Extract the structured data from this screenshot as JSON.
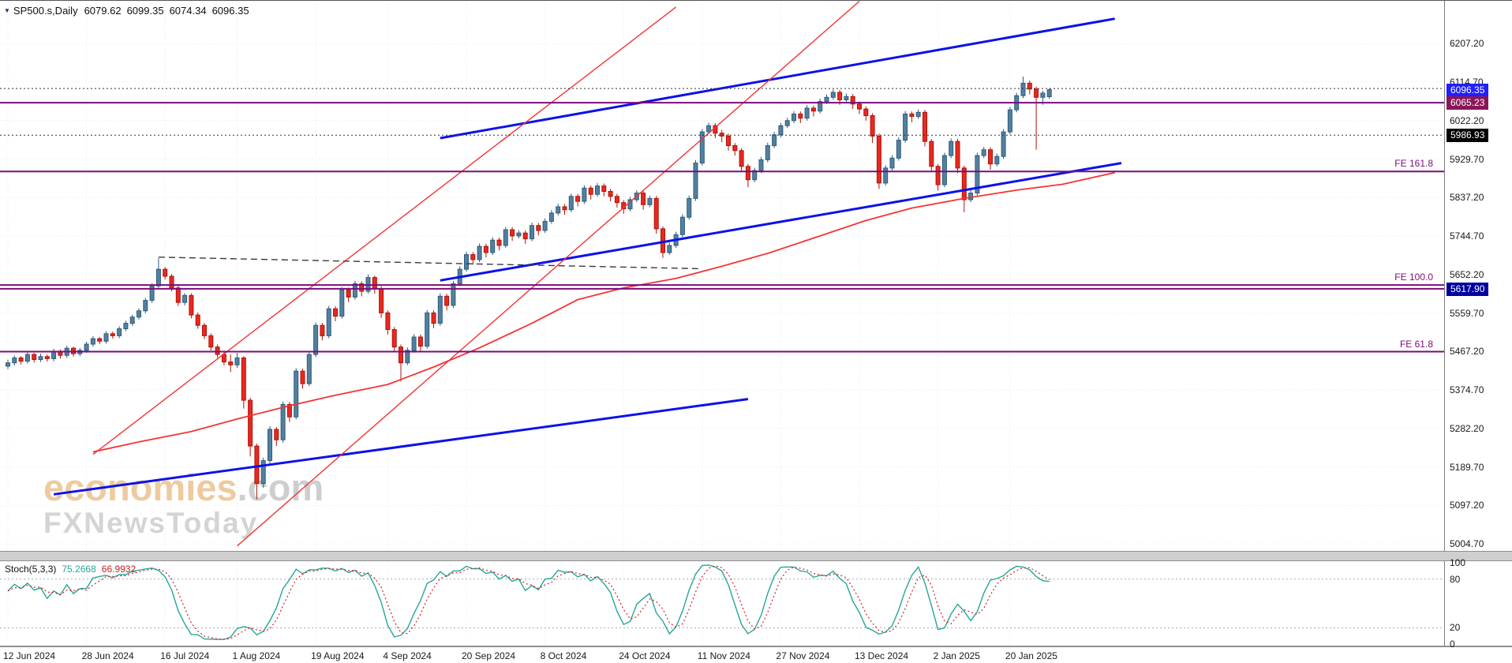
{
  "window": {
    "dropdown_icon": "▼",
    "symbol_timeframe": "SP500.s,Daily",
    "open": "6079.62",
    "high": "6099.35",
    "low": "6074.34",
    "close": "6096.35"
  },
  "watermark": {
    "brand": "economies",
    "domain": ".com",
    "tagline": "FXNewsToday"
  },
  "indicator": {
    "name": "Stoch(5,3,3)",
    "k": "75.2668",
    "d": "66.9932",
    "scale": [
      {
        "text": "100",
        "value": 100
      },
      {
        "text": "80",
        "value": 80
      },
      {
        "text": "20",
        "value": 20
      },
      {
        "text": "0",
        "value": 0
      }
    ]
  },
  "colors": {
    "candle_up": "#53809f",
    "candle_up_border": "#2e5c7c",
    "candle_down": "#e8291f",
    "candle_down_border": "#b01208",
    "grid": "#dcebf2",
    "trend_blue": "#0d12e8",
    "trend_red": "#f53333",
    "fib_purple": "#7a0d7a",
    "stoch_k": "#26a69a",
    "stoch_d": "#d42222",
    "badge_current": "#1f1fff",
    "badge_level": "#8a1657",
    "badge_black": "#000000",
    "badge_navy": "#0000a0"
  },
  "chart_data": {
    "type": "candlestick",
    "symbol": "SP500.s",
    "timeframe": "Daily",
    "title": "SP500.s,Daily 6079.62 6099.35 6074.34 6096.35",
    "legend_position": "top-left",
    "grid": true,
    "y_axis": {
      "side": "right",
      "range": [
        4990,
        6310
      ],
      "ticks": [
        "6207.20",
        "6114.70",
        "6022.20",
        "5929.70",
        "5837.20",
        "5744.70",
        "5652.20",
        "5559.70",
        "5467.20",
        "5374.70",
        "5282.20",
        "5189.70",
        "5097.20",
        "5004.70"
      ]
    },
    "x_axis": [
      {
        "label": "12 Jun 2024",
        "index": 0
      },
      {
        "label": "28 Jun 2024",
        "index": 12
      },
      {
        "label": "16 Jul 2024",
        "index": 24
      },
      {
        "label": "1 Aug 2024",
        "index": 35
      },
      {
        "label": "19 Aug 2024",
        "index": 47
      },
      {
        "label": "4 Sep 2024",
        "index": 58
      },
      {
        "label": "20 Sep 2024",
        "index": 70
      },
      {
        "label": "8 Oct 2024",
        "index": 82
      },
      {
        "label": "24 Oct 2024",
        "index": 94
      },
      {
        "label": "11 Nov 2024",
        "index": 106
      },
      {
        "label": "27 Nov 2024",
        "index": 118
      },
      {
        "label": "13 Dec 2024",
        "index": 130
      },
      {
        "label": "2 Jan 2025",
        "index": 142
      },
      {
        "label": "20 Jan 2025",
        "index": 153
      }
    ],
    "candles": [
      [
        5432,
        5448,
        5425,
        5440
      ],
      [
        5440,
        5458,
        5434,
        5452
      ],
      [
        5452,
        5456,
        5436,
        5444
      ],
      [
        5444,
        5466,
        5438,
        5460
      ],
      [
        5460,
        5464,
        5441,
        5448
      ],
      [
        5448,
        5462,
        5442,
        5455
      ],
      [
        5455,
        5460,
        5443,
        5450
      ],
      [
        5450,
        5474,
        5444,
        5468
      ],
      [
        5468,
        5472,
        5450,
        5458
      ],
      [
        5458,
        5481,
        5452,
        5475
      ],
      [
        5475,
        5479,
        5455,
        5462
      ],
      [
        5462,
        5476,
        5456,
        5470
      ],
      [
        5470,
        5491,
        5464,
        5485
      ],
      [
        5485,
        5504,
        5479,
        5498
      ],
      [
        5498,
        5502,
        5485,
        5492
      ],
      [
        5492,
        5516,
        5486,
        5510
      ],
      [
        5510,
        5515,
        5498,
        5505
      ],
      [
        5505,
        5528,
        5499,
        5522
      ],
      [
        5522,
        5541,
        5516,
        5535
      ],
      [
        5535,
        5556,
        5529,
        5550
      ],
      [
        5550,
        5571,
        5544,
        5565
      ],
      [
        5565,
        5596,
        5559,
        5590
      ],
      [
        5590,
        5631,
        5584,
        5625
      ],
      [
        5625,
        5692,
        5619,
        5665
      ],
      [
        5665,
        5670,
        5640,
        5648
      ],
      [
        5648,
        5653,
        5612,
        5620
      ],
      [
        5620,
        5626,
        5577,
        5585
      ],
      [
        5585,
        5608,
        5578,
        5602
      ],
      [
        5602,
        5607,
        5547,
        5555
      ],
      [
        5555,
        5561,
        5522,
        5530
      ],
      [
        5530,
        5536,
        5497,
        5505
      ],
      [
        5505,
        5511,
        5470,
        5478
      ],
      [
        5478,
        5484,
        5452,
        5460
      ],
      [
        5460,
        5466,
        5434,
        5442
      ],
      [
        5442,
        5460,
        5418,
        5435
      ],
      [
        5435,
        5464,
        5428,
        5452
      ],
      [
        5452,
        5456,
        5330,
        5350
      ],
      [
        5350,
        5356,
        5215,
        5240
      ],
      [
        5240,
        5246,
        5112,
        5150
      ],
      [
        5150,
        5212,
        5140,
        5205
      ],
      [
        5205,
        5288,
        5198,
        5280
      ],
      [
        5280,
        5286,
        5240,
        5255
      ],
      [
        5255,
        5347,
        5248,
        5340
      ],
      [
        5340,
        5346,
        5298,
        5310
      ],
      [
        5310,
        5427,
        5304,
        5420
      ],
      [
        5420,
        5426,
        5378,
        5390
      ],
      [
        5390,
        5467,
        5384,
        5460
      ],
      [
        5460,
        5537,
        5454,
        5530
      ],
      [
        5530,
        5536,
        5494,
        5505
      ],
      [
        5505,
        5577,
        5499,
        5570
      ],
      [
        5570,
        5576,
        5540,
        5552
      ],
      [
        5552,
        5622,
        5546,
        5615
      ],
      [
        5615,
        5621,
        5586,
        5598
      ],
      [
        5598,
        5637,
        5592,
        5630
      ],
      [
        5630,
        5636,
        5600,
        5612
      ],
      [
        5612,
        5652,
        5606,
        5645
      ],
      [
        5645,
        5650,
        5606,
        5618
      ],
      [
        5618,
        5624,
        5548,
        5560
      ],
      [
        5560,
        5566,
        5508,
        5520
      ],
      [
        5520,
        5526,
        5466,
        5478
      ],
      [
        5478,
        5484,
        5395,
        5440
      ],
      [
        5440,
        5477,
        5434,
        5470
      ],
      [
        5470,
        5509,
        5464,
        5502
      ],
      [
        5502,
        5508,
        5468,
        5480
      ],
      [
        5480,
        5567,
        5474,
        5560
      ],
      [
        5560,
        5566,
        5523,
        5535
      ],
      [
        5535,
        5607,
        5529,
        5600
      ],
      [
        5600,
        5606,
        5566,
        5578
      ],
      [
        5578,
        5637,
        5572,
        5630
      ],
      [
        5630,
        5672,
        5624,
        5665
      ],
      [
        5665,
        5707,
        5659,
        5700
      ],
      [
        5700,
        5706,
        5676,
        5688
      ],
      [
        5688,
        5727,
        5682,
        5720
      ],
      [
        5720,
        5726,
        5693,
        5705
      ],
      [
        5705,
        5742,
        5699,
        5735
      ],
      [
        5735,
        5741,
        5710,
        5722
      ],
      [
        5722,
        5767,
        5716,
        5760
      ],
      [
        5760,
        5766,
        5733,
        5745
      ],
      [
        5745,
        5759,
        5739,
        5752
      ],
      [
        5752,
        5758,
        5726,
        5738
      ],
      [
        5738,
        5777,
        5732,
        5770
      ],
      [
        5770,
        5776,
        5746,
        5758
      ],
      [
        5758,
        5787,
        5752,
        5780
      ],
      [
        5780,
        5807,
        5774,
        5800
      ],
      [
        5800,
        5822,
        5794,
        5815
      ],
      [
        5815,
        5821,
        5796,
        5808
      ],
      [
        5808,
        5847,
        5802,
        5840
      ],
      [
        5840,
        5846,
        5816,
        5828
      ],
      [
        5828,
        5867,
        5822,
        5860
      ],
      [
        5860,
        5866,
        5833,
        5845
      ],
      [
        5845,
        5872,
        5839,
        5865
      ],
      [
        5865,
        5871,
        5840,
        5852
      ],
      [
        5852,
        5858,
        5828,
        5840
      ],
      [
        5840,
        5846,
        5813,
        5825
      ],
      [
        5825,
        5831,
        5798,
        5810
      ],
      [
        5810,
        5839,
        5804,
        5832
      ],
      [
        5832,
        5855,
        5826,
        5848
      ],
      [
        5848,
        5854,
        5808,
        5820
      ],
      [
        5820,
        5842,
        5814,
        5835
      ],
      [
        5835,
        5841,
        5750,
        5762
      ],
      [
        5762,
        5768,
        5692,
        5705
      ],
      [
        5705,
        5729,
        5699,
        5722
      ],
      [
        5722,
        5755,
        5716,
        5748
      ],
      [
        5748,
        5797,
        5742,
        5790
      ],
      [
        5790,
        5842,
        5784,
        5835
      ],
      [
        5835,
        5927,
        5829,
        5920
      ],
      [
        5920,
        6002,
        5914,
        5995
      ],
      [
        5995,
        6017,
        5989,
        6010
      ],
      [
        6010,
        6016,
        5980,
        5992
      ],
      [
        5992,
        6000,
        5970,
        5985
      ],
      [
        5985,
        5991,
        5950,
        5962
      ],
      [
        5962,
        5968,
        5938,
        5950
      ],
      [
        5950,
        5956,
        5900,
        5912
      ],
      [
        5912,
        5918,
        5862,
        5880
      ],
      [
        5880,
        5909,
        5874,
        5902
      ],
      [
        5902,
        5935,
        5896,
        5928
      ],
      [
        5928,
        5969,
        5922,
        5962
      ],
      [
        5962,
        5995,
        5956,
        5988
      ],
      [
        5988,
        6017,
        5982,
        6010
      ],
      [
        6010,
        6029,
        6004,
        6022
      ],
      [
        6022,
        6045,
        6016,
        6038
      ],
      [
        6038,
        6044,
        6016,
        6028
      ],
      [
        6028,
        6059,
        6022,
        6052
      ],
      [
        6052,
        6058,
        6032,
        6045
      ],
      [
        6045,
        6075,
        6039,
        6068
      ],
      [
        6068,
        6085,
        6062,
        6078
      ],
      [
        6078,
        6097,
        6072,
        6090
      ],
      [
        6090,
        6096,
        6060,
        6072
      ],
      [
        6072,
        6087,
        6066,
        6080
      ],
      [
        6080,
        6086,
        6050,
        6062
      ],
      [
        6062,
        6068,
        6038,
        6050
      ],
      [
        6050,
        6056,
        6022,
        6034
      ],
      [
        6034,
        6040,
        5968,
        5985
      ],
      [
        5985,
        5991,
        5858,
        5872
      ],
      [
        5872,
        5915,
        5866,
        5908
      ],
      [
        5908,
        5939,
        5902,
        5932
      ],
      [
        5932,
        5982,
        5926,
        5975
      ],
      [
        5975,
        6045,
        5969,
        6038
      ],
      [
        6038,
        6044,
        6018,
        6032
      ],
      [
        6032,
        6049,
        6026,
        6042
      ],
      [
        6042,
        6048,
        5960,
        5972
      ],
      [
        5972,
        5978,
        5898,
        5912
      ],
      [
        5912,
        5918,
        5854,
        5868
      ],
      [
        5868,
        5945,
        5862,
        5938
      ],
      [
        5938,
        5979,
        5932,
        5972
      ],
      [
        5972,
        5978,
        5896,
        5908
      ],
      [
        5908,
        5914,
        5802,
        5832
      ],
      [
        5832,
        5855,
        5826,
        5848
      ],
      [
        5848,
        5945,
        5842,
        5938
      ],
      [
        5938,
        5959,
        5932,
        5952
      ],
      [
        5952,
        5958,
        5904,
        5918
      ],
      [
        5918,
        5943,
        5912,
        5936
      ],
      [
        5936,
        6002,
        5930,
        5995
      ],
      [
        5995,
        6055,
        5989,
        6048
      ],
      [
        6048,
        6089,
        6042,
        6082
      ],
      [
        6082,
        6128,
        6076,
        6112
      ],
      [
        6112,
        6118,
        6085,
        6098
      ],
      [
        6098,
        6104,
        5952,
        6078
      ],
      [
        6078,
        6094,
        6060,
        6088
      ],
      [
        6079.62,
        6099.35,
        6074.34,
        6096.35
      ]
    ],
    "hlines": [
      {
        "price": 6099.35,
        "color": "#333333",
        "width": 1,
        "dash": "2 3"
      },
      {
        "price": 6065.23,
        "color": "#7a0d7a",
        "width": 2
      },
      {
        "price": 5986.93,
        "color": "#333333",
        "width": 1,
        "dash": "2 3"
      },
      {
        "price": 5900.0,
        "color": "#7a0d7a",
        "width": 2,
        "label": "FE 161.8"
      },
      {
        "price": 5627.0,
        "color": "#7a0d7a",
        "width": 2,
        "label": "FE 100.0"
      },
      {
        "price": 5617.9,
        "color": "#7a0d7a",
        "width": 2
      },
      {
        "price": 5467.0,
        "color": "#7a0d7a",
        "width": 2,
        "label": "FE 61.8"
      }
    ],
    "badges": [
      {
        "text": "6096.35",
        "price": 6096.35,
        "color": "#1f1fff"
      },
      {
        "text": "6065.23",
        "price": 6065.23,
        "color": "#8a1657"
      },
      {
        "text": "5986.93",
        "price": 5986.93,
        "color": "#000000"
      },
      {
        "text": "5617.90",
        "price": 5617.9,
        "color": "#0000a0"
      }
    ],
    "trendlines": [
      {
        "name": "upper-channel-blue",
        "color": "#0d12e8",
        "width": 3,
        "from": [
          66,
          5980
        ],
        "to": [
          169,
          6267
        ]
      },
      {
        "name": "middle-channel-blue",
        "color": "#0d12e8",
        "width": 3,
        "from": [
          66,
          5638
        ],
        "to": [
          170,
          5920
        ]
      },
      {
        "name": "lower-support-blue",
        "color": "#0d12e8",
        "width": 3,
        "from": [
          7,
          5124
        ],
        "to": [
          113,
          5353
        ]
      },
      {
        "name": "steep-red-1",
        "color": "#f53333",
        "width": 1.4,
        "from": [
          13,
          5220
        ],
        "to": [
          102,
          6295
        ]
      },
      {
        "name": "steep-red-2",
        "color": "#f53333",
        "width": 1.4,
        "from": [
          35,
          5000
        ],
        "to": [
          130,
          6309
        ]
      },
      {
        "name": "neckline-dashed",
        "color": "#3a3a3a",
        "width": 1.4,
        "dash": "8 5",
        "from": [
          23,
          5694
        ],
        "to": [
          106,
          5666
        ]
      }
    ],
    "ma_curve": {
      "color": "#f53333",
      "width": 1.8,
      "points": [
        [
          13,
          5226
        ],
        [
          20,
          5250
        ],
        [
          28,
          5275
        ],
        [
          35,
          5305
        ],
        [
          43,
          5337
        ],
        [
          50,
          5362
        ],
        [
          58,
          5388
        ],
        [
          65,
          5430
        ],
        [
          72,
          5476
        ],
        [
          80,
          5535
        ],
        [
          87,
          5592
        ],
        [
          94,
          5620
        ],
        [
          102,
          5643
        ],
        [
          109,
          5672
        ],
        [
          116,
          5703
        ],
        [
          124,
          5745
        ],
        [
          131,
          5782
        ],
        [
          138,
          5812
        ],
        [
          146,
          5835
        ],
        [
          154,
          5855
        ],
        [
          161,
          5869
        ],
        [
          169,
          5897
        ]
      ]
    },
    "stoch_levels": [
      80,
      20
    ]
  }
}
